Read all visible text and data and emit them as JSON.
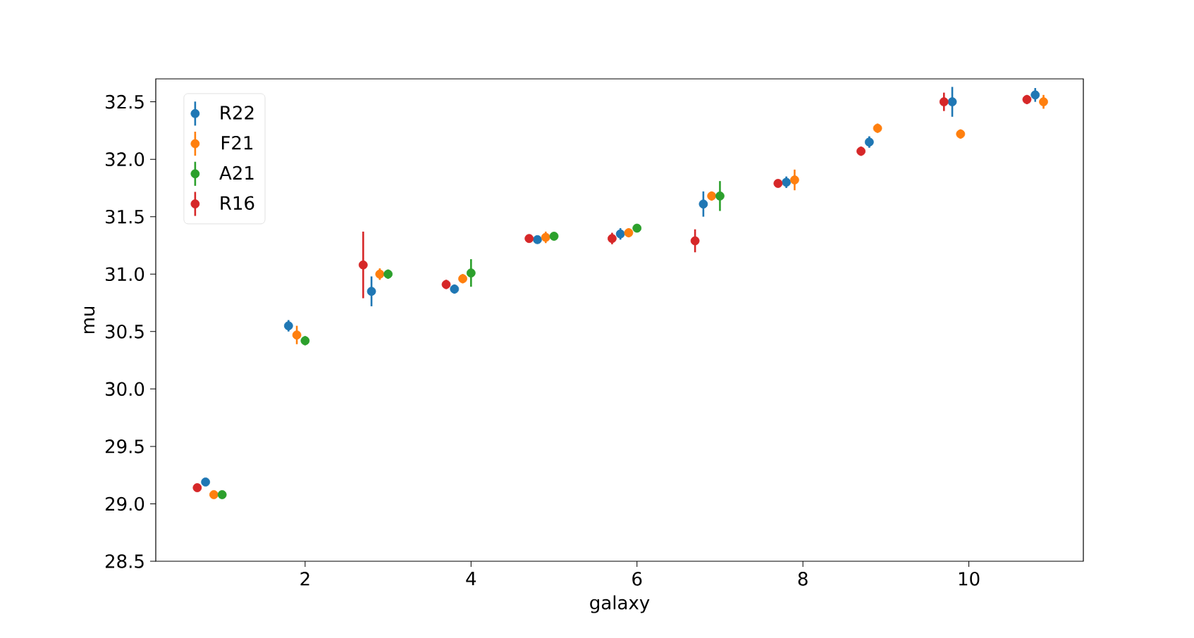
{
  "chart_data": {
    "type": "scatter",
    "xlabel": "galaxy",
    "ylabel": "mu",
    "xlim": [
      0.2,
      11.38
    ],
    "ylim": [
      28.5,
      32.7
    ],
    "xticks": [
      2,
      4,
      6,
      8,
      10
    ],
    "yticks": [
      {
        "value": 28.5,
        "label": "28.5"
      },
      {
        "value": 29.0,
        "label": "29.0"
      },
      {
        "value": 29.5,
        "label": "29.5"
      },
      {
        "value": 30.0,
        "label": "30.0"
      },
      {
        "value": 30.5,
        "label": "30.5"
      },
      {
        "value": 31.0,
        "label": "31.0"
      },
      {
        "value": 31.5,
        "label": "31.5"
      },
      {
        "value": 32.0,
        "label": "32.0"
      },
      {
        "value": 32.5,
        "label": "32.5"
      }
    ],
    "legend": "top left",
    "marker": "circle",
    "grid": false,
    "series": [
      {
        "name": "R22",
        "color": "#1f77b4",
        "x": [
          0.8,
          1.8,
          2.8,
          3.8,
          4.8,
          5.8,
          6.8,
          7.8,
          8.8,
          9.8,
          10.8
        ],
        "values": [
          29.19,
          30.55,
          30.85,
          30.87,
          31.3,
          31.35,
          31.61,
          31.8,
          32.15,
          32.5,
          32.56
        ],
        "errors": [
          0.03,
          0.05,
          0.13,
          0.04,
          0.02,
          0.05,
          0.11,
          0.05,
          0.05,
          0.13,
          0.06
        ]
      },
      {
        "name": "F21",
        "color": "#ff7f0e",
        "x": [
          0.9,
          1.9,
          2.9,
          3.9,
          4.9,
          5.9,
          6.9,
          7.9,
          8.9,
          9.9,
          10.9
        ],
        "values": [
          29.08,
          30.47,
          31.0,
          30.96,
          31.32,
          31.36,
          31.68,
          31.82,
          32.27,
          32.22,
          32.5
        ],
        "errors": [
          0.02,
          0.08,
          0.05,
          0.04,
          0.05,
          0.04,
          0.04,
          0.09,
          0.04,
          0.04,
          0.06
        ]
      },
      {
        "name": "A21",
        "color": "#2ca02c",
        "x": [
          1.0,
          2.0,
          3.0,
          4.0,
          5.0,
          6.0,
          7.0
        ],
        "values": [
          29.08,
          30.42,
          31.0,
          31.01,
          31.33,
          31.4,
          31.68
        ],
        "errors": [
          0.01,
          0.04,
          0.04,
          0.12,
          0.03,
          0.01,
          0.13
        ]
      },
      {
        "name": "R16",
        "color": "#d62728",
        "x": [
          0.7,
          2.7,
          3.7,
          4.7,
          5.7,
          6.7,
          7.7,
          8.7,
          9.7,
          10.7
        ],
        "values": [
          29.14,
          31.08,
          30.91,
          31.31,
          31.31,
          31.29,
          31.79,
          32.07,
          32.5,
          32.52
        ],
        "errors": [
          0.03,
          0.29,
          0.04,
          0.02,
          0.05,
          0.1,
          0.03,
          0.04,
          0.08,
          0.04
        ]
      }
    ]
  }
}
